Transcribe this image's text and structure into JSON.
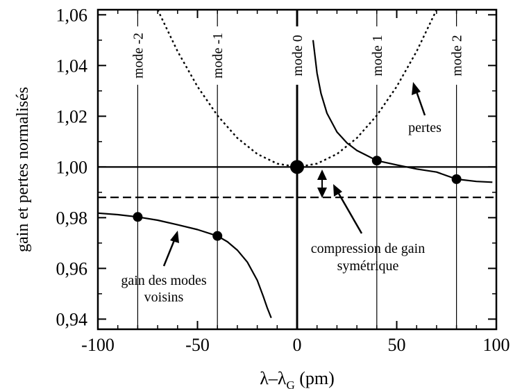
{
  "chart_data": {
    "type": "line",
    "xlabel": "λ–λ",
    "xlabel_sub": "G",
    "xlabel_unit": " (pm)",
    "ylabel": "gain et pertes normalisés",
    "xlim": [
      -100,
      100
    ],
    "ylim": [
      0.936,
      1.062
    ],
    "x_ticks": [
      -100,
      -50,
      0,
      50,
      100
    ],
    "x_tick_labels": [
      "-100",
      "-50",
      "0",
      "50",
      "100"
    ],
    "y_ticks": [
      0.94,
      0.96,
      0.98,
      1.0,
      1.02,
      1.04,
      1.06
    ],
    "y_tick_labels": [
      "0,94",
      "0,96",
      "0,98",
      "1,00",
      "1,02",
      "1,04",
      "1,06"
    ],
    "grid": false,
    "modes": [
      {
        "x": -80,
        "label": "mode -2"
      },
      {
        "x": -40,
        "label": "mode -1"
      },
      {
        "x": 0,
        "label": "mode 0"
      },
      {
        "x": 40,
        "label": "mode 1"
      },
      {
        "x": 80,
        "label": "mode 2"
      }
    ],
    "series": [
      {
        "style": "dotted",
        "x": [
          -70,
          -60,
          -50,
          -40,
          -30,
          -20,
          -10,
          0,
          10,
          20,
          30,
          40,
          50,
          60,
          70
        ],
        "y": [
          1.062,
          1.0456,
          1.0317,
          1.0203,
          1.0114,
          1.0051,
          1.0013,
          1.0,
          1.0013,
          1.0051,
          1.0114,
          1.0203,
          1.0317,
          1.0456,
          1.062
        ]
      },
      {
        "style": "solid",
        "x": [
          -100,
          -90,
          -80,
          -70,
          -60,
          -50,
          -40,
          -35,
          -30,
          -25,
          -20,
          -17,
          -15,
          -13
        ],
        "y": [
          0.9818,
          0.9812,
          0.9803,
          0.979,
          0.9772,
          0.9753,
          0.9728,
          0.9705,
          0.9672,
          0.9625,
          0.9553,
          0.949,
          0.9445,
          0.9405
        ]
      },
      {
        "style": "solid",
        "x": [
          8,
          10,
          12,
          15,
          20,
          25,
          30,
          35,
          40,
          50,
          60,
          70,
          80,
          90,
          98
        ],
        "y": [
          1.05,
          1.037,
          1.029,
          1.0212,
          1.0138,
          1.0095,
          1.0065,
          1.0045,
          1.0025,
          1.0008,
          0.9992,
          0.998,
          0.9952,
          0.9943,
          0.994
        ]
      }
    ],
    "reference_lines": [
      {
        "y": 1.0,
        "style": "solid"
      },
      {
        "y": 0.988,
        "style": "dashed"
      }
    ],
    "points": [
      {
        "x": -80,
        "y": 0.9803
      },
      {
        "x": -40,
        "y": 0.9728
      },
      {
        "x": 0,
        "y": 1.0,
        "large": true
      },
      {
        "x": 40,
        "y": 1.0025
      },
      {
        "x": 80,
        "y": 0.9952
      }
    ],
    "annotations": {
      "pertes": "pertes",
      "compression_line1": "compression de gain",
      "compression_line2": "symétrique",
      "gain_line1": "gain des modes",
      "gain_line2": "voisins"
    }
  }
}
